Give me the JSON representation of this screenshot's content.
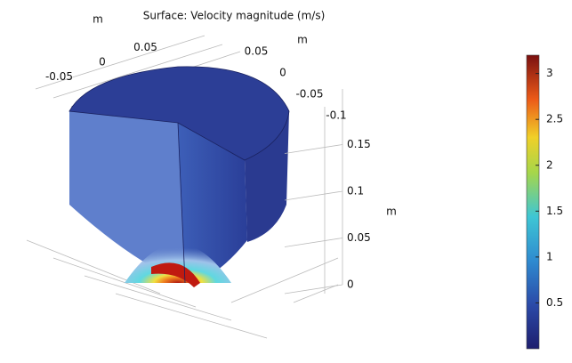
{
  "chart_data": {
    "type": "surface3d",
    "title": "Surface: Velocity magnitude (m/s)",
    "x_label": "m",
    "y_label": "m",
    "z_label": "m",
    "xticks": [
      -0.05,
      0,
      0.05
    ],
    "yticks": [
      0.05,
      0,
      -0.05,
      -0.1
    ],
    "zticks": [
      0,
      0.05,
      0.1,
      0.15
    ],
    "colorbar": {
      "lim": [
        0,
        3.2
      ],
      "ticks": [
        0.5,
        1,
        1.5,
        2,
        2.5,
        3
      ]
    }
  }
}
